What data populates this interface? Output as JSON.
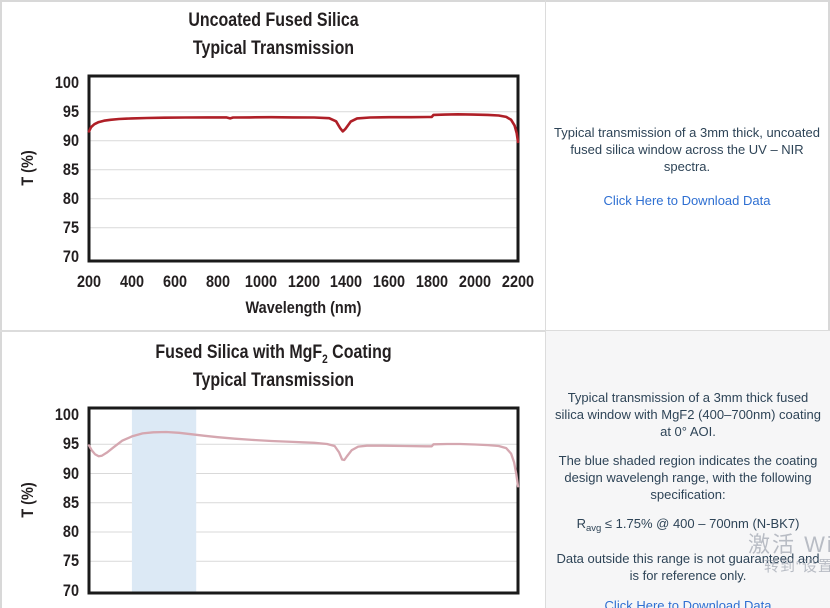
{
  "chart_data": [
    {
      "type": "line",
      "title_line1": {
        "pre": "Uncoated Fused Silica",
        "sub": "",
        "post": ""
      },
      "title_line2": "Typical Transmission",
      "xlabel": "Wavelength (nm)",
      "ylabel": "T (%)",
      "xlim": [
        200,
        2200
      ],
      "ylim": [
        70,
        101
      ],
      "x_ticks": [
        200,
        400,
        600,
        800,
        1000,
        1200,
        1400,
        1600,
        1800,
        2000,
        2200
      ],
      "y_ticks": [
        100,
        95,
        90,
        85,
        80,
        75,
        70
      ],
      "grid": "horizontal",
      "legend": "none",
      "line_color": "#af1f27",
      "band": null,
      "series": [
        {
          "name": "Typical Transmission",
          "points": [
            [
              200,
              91.6
            ],
            [
              210,
              92.35
            ],
            [
              225,
              92.85
            ],
            [
              245,
              93.2
            ],
            [
              270,
              93.45
            ],
            [
              300,
              93.6
            ],
            [
              340,
              93.75
            ],
            [
              400,
              93.85
            ],
            [
              470,
              93.92
            ],
            [
              550,
              93.97
            ],
            [
              650,
              94.0
            ],
            [
              750,
              94.02
            ],
            [
              840,
              94.02
            ],
            [
              858,
              93.85
            ],
            [
              872,
              94.0
            ],
            [
              950,
              94.02
            ],
            [
              1050,
              94.05
            ],
            [
              1150,
              94.02
            ],
            [
              1250,
              94.0
            ],
            [
              1320,
              93.88
            ],
            [
              1352,
              93.35
            ],
            [
              1370,
              92.2
            ],
            [
              1383,
              91.6
            ],
            [
              1396,
              92.05
            ],
            [
              1420,
              93.3
            ],
            [
              1450,
              93.85
            ],
            [
              1510,
              94.0
            ],
            [
              1600,
              94.05
            ],
            [
              1700,
              94.05
            ],
            [
              1780,
              94.08
            ],
            [
              1798,
              94.1
            ],
            [
              1806,
              94.45
            ],
            [
              1860,
              94.5
            ],
            [
              1920,
              94.55
            ],
            [
              1990,
              94.5
            ],
            [
              2060,
              94.45
            ],
            [
              2110,
              94.35
            ],
            [
              2145,
              94.1
            ],
            [
              2168,
              93.6
            ],
            [
              2184,
              92.6
            ],
            [
              2194,
              91.3
            ],
            [
              2200,
              89.8
            ]
          ]
        }
      ]
    },
    {
      "type": "line",
      "title_line1": {
        "pre": "Fused Silica with MgF",
        "sub": "2",
        "post": " Coating"
      },
      "title_line2": "Typical Transmission",
      "ylabel": "T (%)",
      "xlim": [
        200,
        2200
      ],
      "ylim": [
        70,
        101
      ],
      "x_ticks": [],
      "y_ticks": [
        100,
        95,
        90,
        85,
        80,
        75,
        70
      ],
      "grid": "horizontal",
      "legend": "none",
      "line_color": "#d5a7b0",
      "band": {
        "from": 400,
        "to": 700,
        "color": "#dce9f5"
      },
      "series": [
        {
          "name": "Typical Transmission",
          "points": [
            [
              200,
              94.8
            ],
            [
              212,
              94.0
            ],
            [
              228,
              93.3
            ],
            [
              245,
              92.95
            ],
            [
              260,
              93.05
            ],
            [
              285,
              93.6
            ],
            [
              315,
              94.5
            ],
            [
              355,
              95.6
            ],
            [
              400,
              96.35
            ],
            [
              450,
              96.85
            ],
            [
              500,
              97.05
            ],
            [
              560,
              97.1
            ],
            [
              620,
              96.95
            ],
            [
              680,
              96.7
            ],
            [
              740,
              96.45
            ],
            [
              800,
              96.2
            ],
            [
              880,
              95.95
            ],
            [
              960,
              95.75
            ],
            [
              1050,
              95.55
            ],
            [
              1150,
              95.4
            ],
            [
              1250,
              95.25
            ],
            [
              1310,
              95.05
            ],
            [
              1345,
              94.7
            ],
            [
              1366,
              93.6
            ],
            [
              1380,
              92.4
            ],
            [
              1390,
              92.3
            ],
            [
              1402,
              92.9
            ],
            [
              1425,
              94.0
            ],
            [
              1455,
              94.6
            ],
            [
              1495,
              94.75
            ],
            [
              1570,
              94.75
            ],
            [
              1670,
              94.7
            ],
            [
              1770,
              94.65
            ],
            [
              1798,
              94.65
            ],
            [
              1806,
              95.0
            ],
            [
              1870,
              95.05
            ],
            [
              1930,
              95.05
            ],
            [
              2000,
              94.95
            ],
            [
              2060,
              94.85
            ],
            [
              2110,
              94.7
            ],
            [
              2145,
              94.35
            ],
            [
              2168,
              93.4
            ],
            [
              2182,
              91.9
            ],
            [
              2192,
              89.9
            ],
            [
              2200,
              87.8
            ]
          ]
        }
      ]
    }
  ],
  "descriptions": [
    {
      "text": "Typical transmission of a 3mm thick, uncoated fused silica window across the UV – NIR spectra.",
      "link_label": "Click Here to Download Data"
    },
    {
      "para1": "Typical transmission of a 3mm thick fused silica window with MgF2 (400–700nm) coating at 0° AOI.",
      "para2": "The blue shaded region indicates the coating design wavelengh range, with the following specification:",
      "spec": {
        "pre": "R",
        "sub": "avg",
        "post": " ≤ 1.75% @ 400 – 700nm (N-BK7)"
      },
      "para3": "Data outside this range is not guaranteed and is for reference only.",
      "link_label": "Click Here to Download Data"
    }
  ],
  "watermark": {
    "line1": "激活 Wind",
    "line2": "转到“设置"
  },
  "colors": {
    "curve_red": "#af1f27",
    "curve_pale_red": "#d5a7b0",
    "band_blue": "#dce9f5",
    "link_blue": "#2e6fd2",
    "body_text": "#2e4457",
    "chart_text": "#231f20",
    "divider_gray": "#dcdcdc",
    "panel_gray": "#f6f6f7"
  }
}
